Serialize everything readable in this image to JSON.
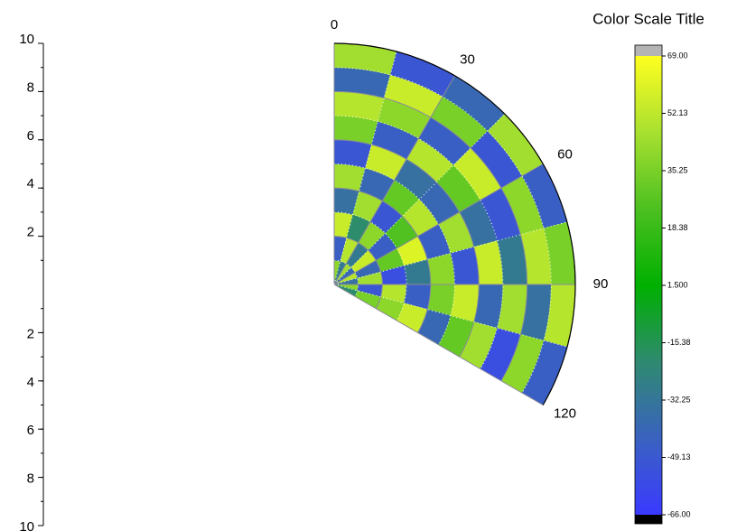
{
  "chart_data": {
    "type": "polar_contour",
    "colorbar_title": "Color Scale Title",
    "rlim": [
      0,
      10
    ],
    "rticks": [
      2,
      4,
      6,
      8,
      10
    ],
    "thetalim": [
      0,
      120
    ],
    "thetaticks": [
      0,
      30,
      60,
      90,
      120
    ],
    "zlim": [
      -66,
      69
    ],
    "zticks": [
      {
        "value": 69,
        "label": "69.00"
      },
      {
        "value": 52.13,
        "label": "52.13"
      },
      {
        "value": 35.25,
        "label": "35.25"
      },
      {
        "value": 18.38,
        "label": "18.38"
      },
      {
        "value": 1.5,
        "label": "1.500"
      },
      {
        "value": -15.38,
        "label": "-15.38"
      },
      {
        "value": -32.25,
        "label": "-32.25"
      },
      {
        "value": -49.13,
        "label": "-49.13"
      },
      {
        "value": -66,
        "label": "-66.00"
      }
    ],
    "colormap": [
      "#3a3aff",
      "#3a62c0",
      "#2f8a70",
      "#00b000",
      "#4cc020",
      "#a8e030",
      "#ffff20"
    ],
    "over_color": "#b4b4b4",
    "under_color": "#000000",
    "grid": true,
    "z": [
      [
        40,
        -30,
        45,
        -40,
        50,
        -35,
        40,
        -20
      ],
      [
        -45,
        50,
        -30,
        55,
        -40,
        45,
        -50,
        35
      ],
      [
        55,
        -20,
        40,
        -45,
        30,
        -55,
        50,
        40
      ],
      [
        -35,
        45,
        -50,
        25,
        60,
        -30,
        -45,
        55
      ],
      [
        45,
        -40,
        30,
        50,
        -45,
        40,
        35,
        -40
      ],
      [
        -50,
        55,
        -35,
        -40,
        45,
        -50,
        55,
        30
      ],
      [
        35,
        -45,
        50,
        30,
        -35,
        55,
        -40,
        45
      ],
      [
        50,
        40,
        -45,
        55,
        -50,
        -30,
        45,
        -55
      ],
      [
        -40,
        55,
        35,
        -50,
        40,
        50,
        -35,
        40
      ],
      [
        45,
        -50,
        -40,
        45,
        -45,
        35,
        50,
        -45
      ]
    ]
  }
}
